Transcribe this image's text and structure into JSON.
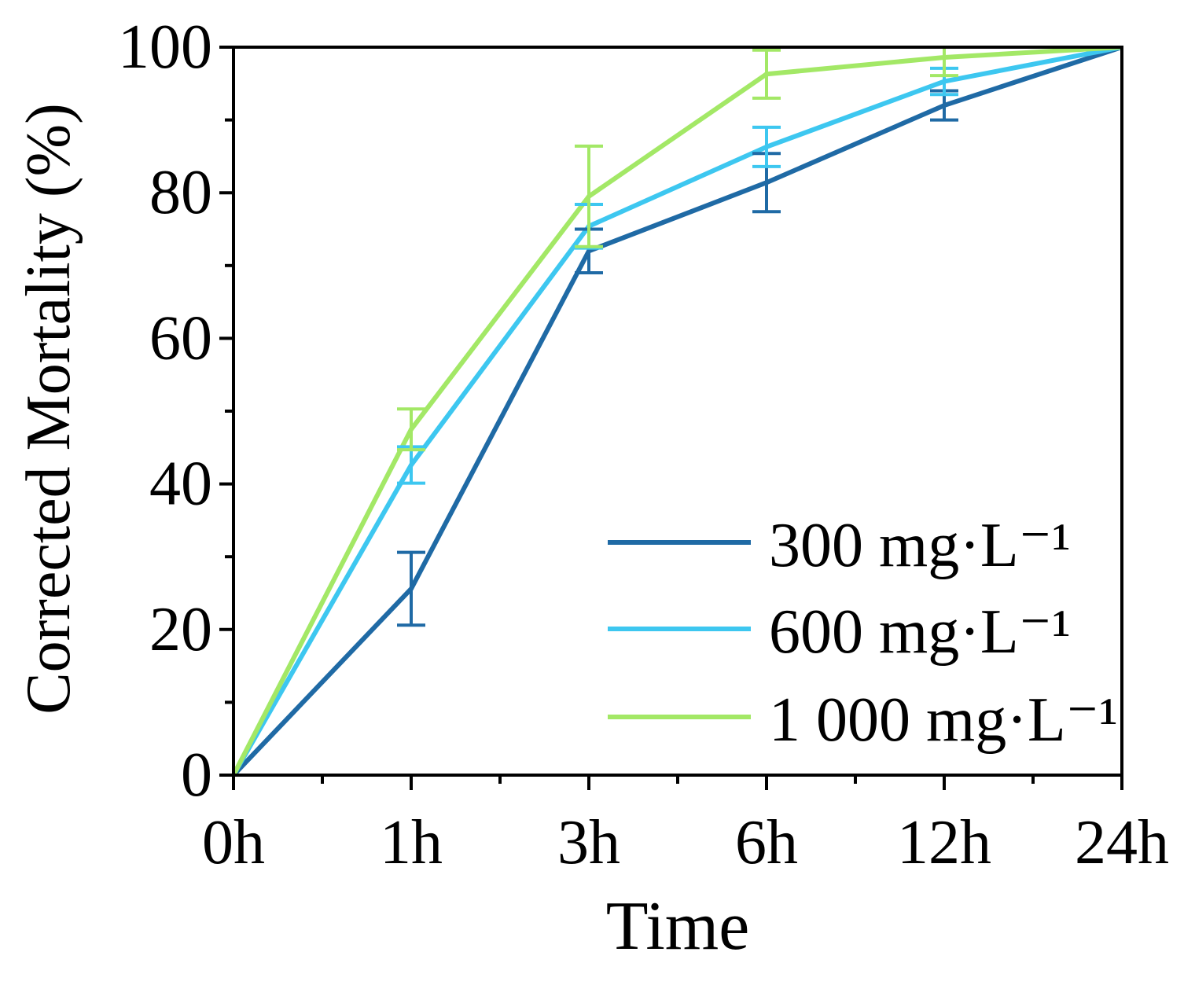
{
  "chart_data": {
    "type": "line",
    "xlabel": "Time",
    "ylabel": "Corrected Mortality (%)",
    "categories": [
      "0h",
      "1h",
      "3h",
      "6h",
      "12h",
      "24h"
    ],
    "ylim": [
      0,
      100
    ],
    "yticks": [
      0,
      20,
      40,
      60,
      80,
      100
    ],
    "grid": false,
    "legend": "bottom-right",
    "series": [
      {
        "name": "300 mg·L⁻¹",
        "color": "#1f6aa5",
        "values": [
          0,
          25.6,
          72.0,
          81.4,
          92.0,
          100
        ],
        "errors": [
          0,
          5.0,
          3.0,
          4.0,
          2.0,
          0
        ]
      },
      {
        "name": "600 mg·L⁻¹",
        "color": "#3dc7f0",
        "values": [
          0,
          42.6,
          75.4,
          86.3,
          95.3,
          100
        ],
        "errors": [
          0,
          2.5,
          3.0,
          2.7,
          1.8,
          0
        ]
      },
      {
        "name": "1 000 mg·L⁻¹",
        "color": "#a3e866",
        "values": [
          0,
          47.5,
          79.5,
          96.3,
          98.6,
          100
        ],
        "errors": [
          0,
          2.8,
          6.9,
          3.3,
          2.5,
          0
        ]
      }
    ]
  }
}
